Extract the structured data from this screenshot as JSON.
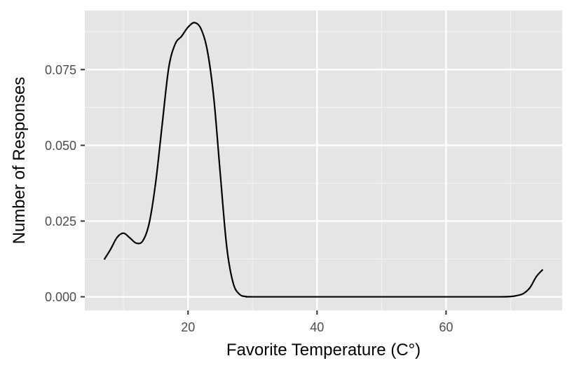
{
  "chart_data": {
    "type": "line",
    "title": "",
    "xlabel": "Favorite Temperature (C°)",
    "ylabel": "Number of Responses",
    "xlim": [
      4,
      78
    ],
    "ylim": [
      -0.0045,
      0.0945
    ],
    "x_ticks": [
      20,
      40,
      60
    ],
    "x_tick_labels": [
      "20",
      "40",
      "60"
    ],
    "y_ticks": [
      0,
      0.025,
      0.05,
      0.075
    ],
    "y_tick_labels": [
      "0.000",
      "0.025",
      "0.050",
      "0.075"
    ],
    "grid": true,
    "legend": "none",
    "series": [
      {
        "color": "#000000",
        "x": [
          7,
          8,
          9,
          10,
          11,
          12,
          13,
          14,
          15,
          16,
          17,
          18,
          19,
          20,
          21,
          22,
          23,
          24,
          25,
          26,
          27,
          28,
          29,
          30,
          40,
          50,
          60,
          68,
          70,
          71,
          72,
          73,
          74,
          75
        ],
        "y": [
          0.0123,
          0.0157,
          0.0196,
          0.021,
          0.0194,
          0.0177,
          0.0185,
          0.0245,
          0.038,
          0.057,
          0.0755,
          0.0834,
          0.086,
          0.089,
          0.0905,
          0.0885,
          0.0812,
          0.0655,
          0.0405,
          0.0165,
          0.0045,
          0.0008,
          0.0001,
          0.0,
          0.0,
          0.0,
          0.0,
          0.0,
          0.0001,
          0.0004,
          0.0011,
          0.003,
          0.0067,
          0.009
        ]
      }
    ]
  }
}
